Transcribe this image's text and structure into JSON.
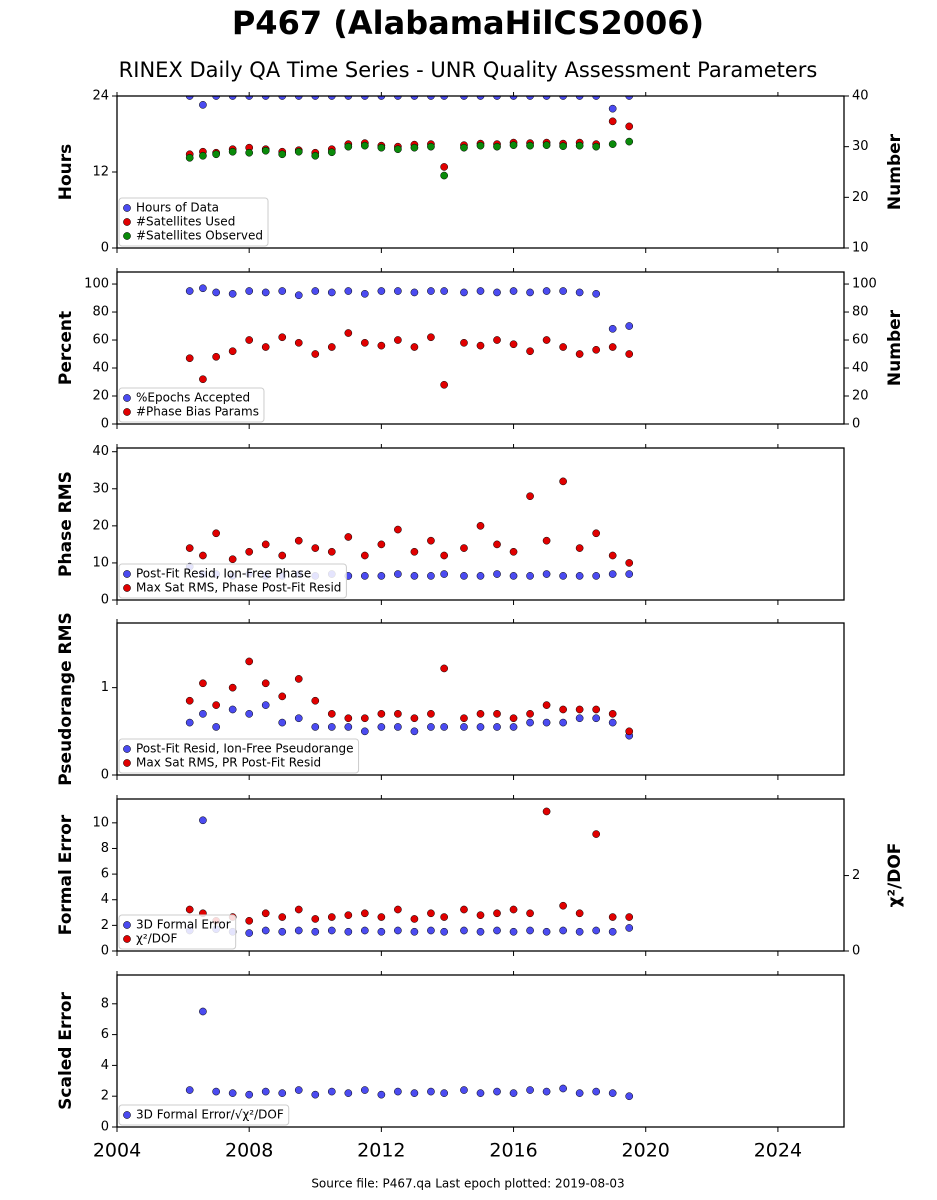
{
  "title": "P467 (AlabamaHilCS2006)",
  "subtitle": "RINEX Daily QA Time Series - UNR Quality Assessment Parameters",
  "source": "Source file: P467.qa Last epoch plotted: 2019-08-03",
  "chart_data": [
    {
      "type": "scatter",
      "ylabel": "Hours",
      "y2label": "Number",
      "legend": "lower left",
      "x": [
        2006.2,
        2006.6,
        2007.0,
        2007.5,
        2008.0,
        2008.5,
        2009.0,
        2009.5,
        2010.0,
        2010.5,
        2011.0,
        2011.5,
        2012.0,
        2012.5,
        2013.0,
        2013.5,
        2013.9,
        2014.5,
        2015.0,
        2015.5,
        2016.0,
        2016.5,
        2017.0,
        2017.5,
        2018.0,
        2018.5,
        2019.0,
        2019.5
      ],
      "ylim": [
        0,
        24
      ],
      "yticks": [
        0,
        12,
        24
      ],
      "y2lim": [
        10,
        40
      ],
      "y2ticks": [
        10,
        20,
        30,
        40
      ],
      "series": [
        {
          "name": "Hours of Data",
          "color": "#4b4bf0",
          "values": [
            24,
            22.6,
            24,
            24,
            24,
            24,
            24,
            24,
            24,
            24,
            24,
            24,
            24,
            24,
            24,
            24,
            24,
            24,
            24,
            24,
            24,
            24,
            24,
            24,
            24,
            24,
            22.0,
            24
          ]
        },
        {
          "name": "#Satellites Used",
          "color": "#e00000",
          "axis": "y2",
          "values": [
            28.5,
            29,
            28.8,
            29.5,
            29.8,
            29.5,
            29,
            29.3,
            28.8,
            29.5,
            30.5,
            30.7,
            30.2,
            30,
            30.4,
            30.5,
            26,
            30.3,
            30.6,
            30.5,
            30.8,
            30.7,
            30.8,
            30.6,
            30.8,
            30.5,
            35,
            34
          ]
        },
        {
          "name": "#Satellites Observed",
          "color": "#0a8a0a",
          "axis": "y2",
          "values": [
            27.8,
            28.2,
            28.5,
            29,
            28.8,
            29.2,
            28.5,
            29,
            28.2,
            28.9,
            30,
            30.2,
            29.8,
            29.5,
            29.8,
            30,
            24.3,
            29.8,
            30.2,
            30,
            30.3,
            30.2,
            30.3,
            30.1,
            30.2,
            30,
            30.5,
            31
          ]
        }
      ]
    },
    {
      "type": "scatter",
      "ylabel": "Percent",
      "y2label": "Number",
      "legend": "lower left",
      "x": [
        2006.2,
        2006.6,
        2007.0,
        2007.5,
        2008.0,
        2008.5,
        2009.0,
        2009.5,
        2010.0,
        2010.5,
        2011.0,
        2011.5,
        2012.0,
        2012.5,
        2013.0,
        2013.5,
        2013.9,
        2014.5,
        2015.0,
        2015.5,
        2016.0,
        2016.5,
        2017.0,
        2017.5,
        2018.0,
        2018.5,
        2019.0,
        2019.5
      ],
      "ylim": [
        0,
        108.6
      ],
      "yticks": [
        0,
        20,
        40,
        60,
        80,
        100
      ],
      "y2lim": [
        0,
        108.6
      ],
      "y2ticks": [
        0,
        20,
        40,
        60,
        80,
        100
      ],
      "series": [
        {
          "name": "%Epochs Accepted",
          "color": "#4b4bf0",
          "values": [
            95,
            97,
            94,
            93,
            95,
            94,
            95,
            92,
            95,
            94,
            95,
            93,
            95,
            95,
            94,
            95,
            95,
            94,
            95,
            94,
            95,
            94,
            95,
            95,
            94,
            93,
            68,
            70
          ]
        },
        {
          "name": "#Phase Bias Params",
          "color": "#e00000",
          "axis": "y2",
          "values": [
            47,
            32,
            48,
            52,
            60,
            55,
            62,
            58,
            50,
            55,
            65,
            58,
            56,
            60,
            55,
            62,
            28,
            58,
            56,
            60,
            57,
            52,
            60,
            55,
            50,
            53,
            55,
            50
          ]
        }
      ]
    },
    {
      "type": "scatter",
      "ylabel": "Phase RMS",
      "legend": "lower left",
      "x": [
        2006.2,
        2006.6,
        2007.0,
        2007.5,
        2008.0,
        2008.5,
        2009.0,
        2009.5,
        2010.0,
        2010.5,
        2011.0,
        2011.5,
        2012.0,
        2012.5,
        2013.0,
        2013.5,
        2013.9,
        2014.5,
        2015.0,
        2015.5,
        2016.0,
        2016.5,
        2017.0,
        2017.5,
        2018.0,
        2018.5,
        2019.0,
        2019.5
      ],
      "ylim": [
        0,
        41
      ],
      "yticks": [
        0,
        10,
        20,
        30,
        40
      ],
      "series": [
        {
          "name": "Post-Fit Resid, Ion-Free Phase",
          "color": "#4b4bf0",
          "values": [
            9,
            7,
            7,
            6.5,
            7,
            6.5,
            6.5,
            7,
            6.5,
            7,
            6.5,
            6.5,
            6.5,
            7,
            6.5,
            6.5,
            7,
            6.5,
            6.5,
            7,
            6.5,
            6.5,
            7,
            6.5,
            6.5,
            6.5,
            7,
            7
          ]
        },
        {
          "name": "Max Sat RMS, Phase Post-Fit Resid",
          "color": "#e00000",
          "values": [
            14,
            12,
            18,
            11,
            13,
            15,
            12,
            16,
            14,
            13,
            17,
            12,
            15,
            19,
            13,
            16,
            12,
            14,
            20,
            15,
            13,
            28,
            16,
            32,
            14,
            18,
            12,
            10
          ]
        }
      ]
    },
    {
      "type": "scatter",
      "ylabel": "Pseudorange RMS",
      "legend": "lower left",
      "x": [
        2006.2,
        2006.6,
        2007.0,
        2007.5,
        2008.0,
        2008.5,
        2009.0,
        2009.5,
        2010.0,
        2010.5,
        2011.0,
        2011.5,
        2012.0,
        2012.5,
        2013.0,
        2013.5,
        2013.9,
        2014.5,
        2015.0,
        2015.5,
        2016.0,
        2016.5,
        2017.0,
        2017.5,
        2018.0,
        2018.5,
        2019.0,
        2019.5
      ],
      "ylim": [
        0,
        1.74
      ],
      "yticks": [
        0,
        1
      ],
      "series": [
        {
          "name": "Post-Fit Resid, Ion-Free Pseudorange",
          "color": "#4b4bf0",
          "values": [
            0.6,
            0.7,
            0.55,
            0.75,
            0.7,
            0.8,
            0.6,
            0.65,
            0.55,
            0.55,
            0.55,
            0.5,
            0.55,
            0.55,
            0.5,
            0.55,
            0.55,
            0.55,
            0.55,
            0.55,
            0.55,
            0.6,
            0.6,
            0.6,
            0.65,
            0.65,
            0.6,
            0.45
          ]
        },
        {
          "name": "Max Sat RMS, PR Post-Fit Resid",
          "color": "#e00000",
          "values": [
            0.85,
            1.05,
            0.8,
            1.0,
            1.3,
            1.05,
            0.9,
            1.1,
            0.85,
            0.7,
            0.65,
            0.65,
            0.7,
            0.7,
            0.65,
            0.7,
            1.22,
            0.65,
            0.7,
            0.7,
            0.65,
            0.7,
            0.8,
            0.75,
            0.75,
            0.75,
            0.7,
            0.5
          ]
        }
      ]
    },
    {
      "type": "scatter",
      "ylabel": "Formal Error",
      "y2label": "χ²/DOF",
      "legend": "lower left",
      "x": [
        2006.2,
        2006.6,
        2007.0,
        2007.5,
        2008.0,
        2008.5,
        2009.0,
        2009.5,
        2010.0,
        2010.5,
        2011.0,
        2011.5,
        2012.0,
        2012.5,
        2013.0,
        2013.5,
        2013.9,
        2014.5,
        2015.0,
        2015.5,
        2016.0,
        2016.5,
        2017.0,
        2017.5,
        2018.0,
        2018.5,
        2019.0,
        2019.5
      ],
      "ylim": [
        0,
        11.86
      ],
      "yticks": [
        0,
        2,
        4,
        6,
        8,
        10
      ],
      "y2lim": [
        0,
        4.03
      ],
      "y2ticks": [
        0,
        2
      ],
      "series": [
        {
          "name": "3D Formal Error",
          "color": "#4b4bf0",
          "values": [
            1.6,
            10.2,
            1.7,
            1.5,
            1.4,
            1.6,
            1.5,
            1.6,
            1.5,
            1.6,
            1.5,
            1.6,
            1.5,
            1.6,
            1.5,
            1.6,
            1.5,
            1.6,
            1.5,
            1.6,
            1.5,
            1.6,
            1.5,
            1.6,
            1.5,
            1.6,
            1.5,
            1.8
          ]
        },
        {
          "name": "χ²/DOF",
          "color": "#e00000",
          "axis": "y2",
          "values": [
            1.1,
            1.0,
            0.8,
            0.9,
            0.8,
            1.0,
            0.9,
            1.1,
            0.85,
            0.9,
            0.95,
            1.0,
            0.9,
            1.1,
            0.85,
            1.0,
            0.9,
            1.1,
            0.95,
            1.0,
            1.1,
            1.0,
            3.7,
            1.2,
            1.0,
            3.1,
            0.9,
            0.9
          ]
        }
      ]
    },
    {
      "type": "scatter",
      "ylabel": "Scaled Error",
      "legend": "lower left",
      "x": [
        2006.2,
        2006.6,
        2007.0,
        2007.5,
        2008.0,
        2008.5,
        2009.0,
        2009.5,
        2010.0,
        2010.5,
        2011.0,
        2011.5,
        2012.0,
        2012.5,
        2013.0,
        2013.5,
        2013.9,
        2014.5,
        2015.0,
        2015.5,
        2016.0,
        2016.5,
        2017.0,
        2017.5,
        2018.0,
        2018.5,
        2019.0,
        2019.5
      ],
      "ylim": [
        0,
        9.87
      ],
      "yticks": [
        0,
        2,
        4,
        6,
        8
      ],
      "xlim": [
        2004,
        2026
      ],
      "xticks": [
        2004,
        2008,
        2012,
        2016,
        2020,
        2024
      ],
      "series": [
        {
          "name": "3D Formal Error/√χ²/DOF",
          "color": "#4b4bf0",
          "values": [
            2.4,
            7.5,
            2.3,
            2.2,
            2.1,
            2.3,
            2.2,
            2.4,
            2.1,
            2.3,
            2.2,
            2.4,
            2.1,
            2.3,
            2.2,
            2.3,
            2.2,
            2.4,
            2.2,
            2.3,
            2.2,
            2.4,
            2.3,
            2.5,
            2.2,
            2.3,
            2.2,
            2.0
          ]
        }
      ]
    }
  ]
}
